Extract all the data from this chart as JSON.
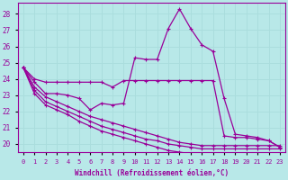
{
  "xlabel": "Windchill (Refroidissement éolien,°C)",
  "ylabel": "",
  "background_color": "#b8e8e8",
  "line_color": "#990099",
  "grid_color": "#aadddd",
  "xlim": [
    -0.5,
    23.5
  ],
  "ylim": [
    19.5,
    28.7
  ],
  "yticks": [
    20,
    21,
    22,
    23,
    24,
    25,
    26,
    27,
    28
  ],
  "xticks": [
    0,
    1,
    2,
    3,
    4,
    5,
    6,
    7,
    8,
    9,
    10,
    11,
    12,
    13,
    14,
    15,
    16,
    17,
    18,
    19,
    20,
    21,
    22,
    23
  ],
  "lines": [
    {
      "x": [
        0,
        1,
        2,
        3,
        4,
        5,
        6,
        7,
        8,
        9,
        10,
        11,
        12,
        13,
        14,
        15,
        16,
        17,
        18,
        19,
        20,
        21,
        22,
        23
      ],
      "y": [
        24.7,
        23.8,
        23.1,
        23.1,
        23.0,
        22.8,
        22.1,
        22.5,
        22.4,
        22.5,
        25.3,
        25.2,
        25.2,
        27.1,
        28.3,
        27.1,
        26.1,
        25.7,
        22.8,
        20.6,
        20.5,
        20.4,
        20.2,
        19.8
      ]
    },
    {
      "x": [
        0,
        1,
        2,
        3,
        4,
        5,
        6,
        7,
        8,
        9,
        10,
        11,
        12,
        13,
        14,
        15,
        16,
        17,
        18,
        19,
        20,
        21,
        22,
        23
      ],
      "y": [
        24.7,
        24.0,
        23.8,
        23.8,
        23.8,
        23.8,
        23.8,
        23.8,
        23.5,
        23.9,
        23.9,
        23.9,
        23.9,
        23.9,
        23.9,
        23.9,
        23.9,
        23.9,
        20.5,
        20.4,
        20.4,
        20.3,
        20.2,
        19.8
      ]
    },
    {
      "x": [
        0,
        1,
        2,
        3,
        4,
        5,
        6,
        7,
        8,
        9,
        10,
        11,
        12,
        13,
        14,
        15,
        16,
        17,
        18,
        19,
        20,
        21,
        22,
        23
      ],
      "y": [
        24.7,
        23.3,
        22.6,
        22.3,
        22.0,
        21.7,
        21.4,
        21.1,
        20.9,
        20.7,
        20.5,
        20.3,
        20.2,
        20.0,
        19.9,
        19.8,
        19.7,
        19.7,
        19.7,
        19.7,
        19.7,
        19.7,
        19.7,
        19.7
      ]
    },
    {
      "x": [
        0,
        1,
        2,
        3,
        4,
        5,
        6,
        7,
        8,
        9,
        10,
        11,
        12,
        13,
        14,
        15,
        16,
        17,
        18,
        19,
        20,
        21,
        22,
        23
      ],
      "y": [
        24.7,
        23.5,
        22.9,
        22.6,
        22.3,
        22.0,
        21.7,
        21.5,
        21.3,
        21.1,
        20.9,
        20.7,
        20.5,
        20.3,
        20.1,
        20.0,
        19.9,
        19.9,
        19.9,
        19.9,
        19.9,
        19.9,
        19.9,
        19.9
      ]
    },
    {
      "x": [
        0,
        1,
        2,
        3,
        4,
        5,
        6,
        7,
        8,
        9,
        10,
        11,
        12,
        13,
        14,
        15,
        16,
        17,
        18,
        19,
        20,
        21,
        22,
        23
      ],
      "y": [
        24.7,
        23.1,
        22.4,
        22.1,
        21.8,
        21.4,
        21.1,
        20.8,
        20.6,
        20.4,
        20.2,
        20.0,
        19.8,
        19.6,
        19.5,
        19.4,
        19.3,
        19.3,
        19.3,
        19.3,
        19.3,
        19.3,
        19.3,
        19.3
      ]
    }
  ]
}
